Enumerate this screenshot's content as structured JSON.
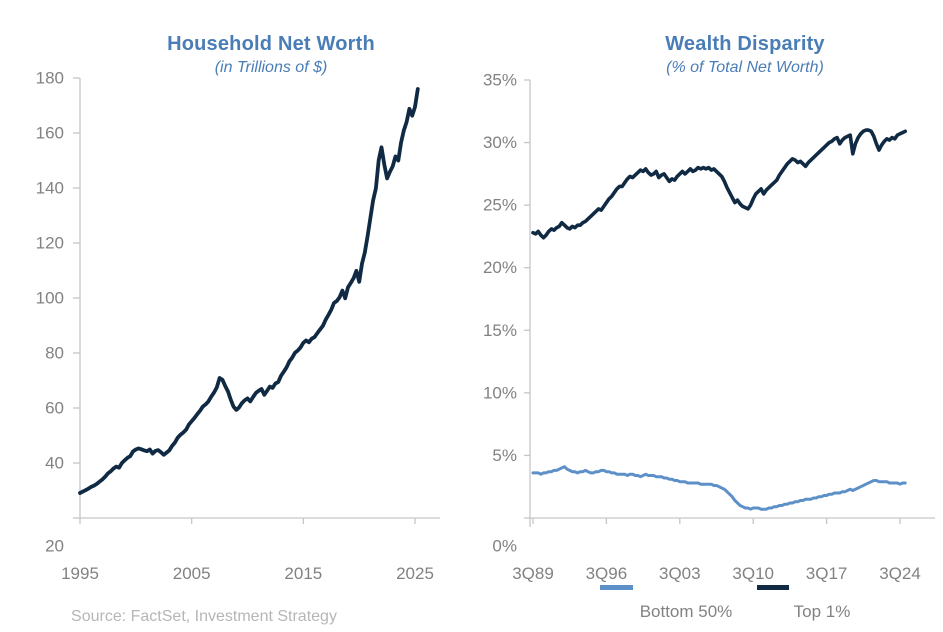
{
  "page": {
    "source_note": "Source: FactSet, Investment Strategy",
    "accent_color": "#4a7db6",
    "axis_text_color": "#828282",
    "axis_line_color": "#c6c6c6",
    "source_text_color": "#b6b6b6"
  },
  "legend": {
    "position": "bottom",
    "items": [
      {
        "label": "Bottom 50%",
        "color": "#5d90c8"
      },
      {
        "label": "Top 1%",
        "color": "#112a44"
      }
    ]
  },
  "chart_data": [
    {
      "type": "line",
      "title": "Household Net Worth",
      "subtitle": "(in Trillions of $)",
      "xlabel": "",
      "ylabel": "",
      "ylim": [
        20,
        180
      ],
      "grid": false,
      "x_start": 1995.0,
      "x_step": 0.25,
      "yticks": [
        {
          "v": 20,
          "label": "20"
        },
        {
          "v": 40,
          "label": "40"
        },
        {
          "v": 60,
          "label": "60"
        },
        {
          "v": 80,
          "label": "80"
        },
        {
          "v": 100,
          "label": "100"
        },
        {
          "v": 120,
          "label": "120"
        },
        {
          "v": 140,
          "label": "140"
        },
        {
          "v": 160,
          "label": "160"
        },
        {
          "v": 180,
          "label": "180"
        }
      ],
      "xticks": [
        {
          "t": 1995,
          "label": "1995"
        },
        {
          "t": 2005,
          "label": "2005"
        },
        {
          "t": 2015,
          "label": "2015"
        },
        {
          "t": 2025,
          "label": "2025"
        }
      ],
      "series": [
        {
          "name": "Household Net Worth",
          "color": "#112a44",
          "values": [
            29.1,
            29.6,
            30.1,
            30.7,
            31.3,
            31.8,
            32.4,
            33.2,
            34.0,
            35.0,
            36.2,
            37.0,
            38.0,
            38.7,
            38.3,
            40.0,
            41.0,
            41.9,
            42.5,
            44.2,
            44.9,
            45.3,
            45.0,
            44.6,
            44.3,
            44.9,
            43.4,
            44.4,
            44.7,
            43.9,
            43.0,
            43.8,
            44.6,
            46.2,
            47.4,
            49.2,
            50.3,
            51.1,
            52.1,
            54.0,
            55.2,
            56.4,
            57.8,
            59.0,
            60.5,
            61.3,
            62.4,
            64.1,
            65.6,
            67.5,
            70.9,
            70.3,
            68.0,
            66.0,
            63.0,
            60.5,
            59.3,
            60.2,
            61.8,
            62.8,
            63.5,
            62.4,
            64.0,
            65.5,
            66.3,
            66.9,
            64.8,
            66.2,
            67.8,
            67.3,
            68.9,
            69.4,
            71.7,
            73.2,
            74.8,
            77.0,
            78.3,
            80.1,
            80.9,
            82.0,
            83.7,
            84.6,
            83.9,
            85.2,
            85.8,
            87.2,
            88.6,
            89.9,
            92.1,
            93.9,
            95.8,
            98.2,
            98.9,
            100.3,
            102.7,
            99.9,
            103.9,
            105.5,
            107.2,
            109.9,
            105.9,
            112.5,
            116.5,
            122.3,
            128.9,
            135.5,
            139.9,
            150.1,
            154.8,
            148.5,
            143.5,
            145.9,
            147.9,
            151.5,
            150.0,
            156.4,
            160.9,
            164.0,
            168.8,
            166.3,
            169.5,
            176.0
          ]
        }
      ]
    },
    {
      "type": "line",
      "title": "Wealth Disparity",
      "subtitle": "(% of Total Net Worth)",
      "xlabel": "",
      "ylabel": "",
      "ylim": [
        0,
        35
      ],
      "grid": false,
      "legend_position": "bottom",
      "x_start": 1989.5,
      "x_step": 0.25,
      "yticks": [
        {
          "v": 0,
          "label": "0%"
        },
        {
          "v": 5,
          "label": "5%"
        },
        {
          "v": 10,
          "label": "10%"
        },
        {
          "v": 15,
          "label": "15%"
        },
        {
          "v": 20,
          "label": "20%"
        },
        {
          "v": 25,
          "label": "25%"
        },
        {
          "v": 30,
          "label": "30%"
        },
        {
          "v": 35,
          "label": "35%"
        }
      ],
      "xticks": [
        {
          "t": 1989.5,
          "label": "3Q89"
        },
        {
          "t": 1996.5,
          "label": "3Q96"
        },
        {
          "t": 2003.5,
          "label": "3Q03"
        },
        {
          "t": 2010.5,
          "label": "3Q10"
        },
        {
          "t": 2017.5,
          "label": "3Q17"
        },
        {
          "t": 2024.5,
          "label": "3Q24"
        }
      ],
      "series": [
        {
          "name": "Bottom 50%",
          "color": "#5d90c8",
          "values": [
            3.6,
            3.6,
            3.6,
            3.5,
            3.6,
            3.6,
            3.7,
            3.7,
            3.8,
            3.8,
            3.9,
            4.0,
            4.1,
            3.9,
            3.8,
            3.7,
            3.7,
            3.6,
            3.7,
            3.7,
            3.8,
            3.7,
            3.6,
            3.6,
            3.7,
            3.7,
            3.8,
            3.8,
            3.7,
            3.7,
            3.6,
            3.6,
            3.5,
            3.5,
            3.5,
            3.5,
            3.4,
            3.5,
            3.5,
            3.4,
            3.4,
            3.3,
            3.4,
            3.5,
            3.4,
            3.4,
            3.4,
            3.3,
            3.3,
            3.3,
            3.2,
            3.2,
            3.1,
            3.1,
            3.0,
            3.0,
            2.9,
            2.9,
            2.9,
            2.8,
            2.8,
            2.8,
            2.8,
            2.8,
            2.7,
            2.7,
            2.7,
            2.7,
            2.7,
            2.6,
            2.6,
            2.5,
            2.4,
            2.3,
            2.1,
            1.9,
            1.7,
            1.4,
            1.2,
            1.0,
            0.9,
            0.8,
            0.8,
            0.7,
            0.8,
            0.8,
            0.8,
            0.7,
            0.7,
            0.7,
            0.8,
            0.8,
            0.9,
            0.9,
            1.0,
            1.0,
            1.1,
            1.1,
            1.2,
            1.2,
            1.3,
            1.3,
            1.4,
            1.4,
            1.5,
            1.5,
            1.5,
            1.6,
            1.6,
            1.7,
            1.7,
            1.8,
            1.8,
            1.9,
            1.9,
            2.0,
            2.0,
            2.0,
            2.1,
            2.1,
            2.2,
            2.3,
            2.2,
            2.3,
            2.4,
            2.5,
            2.6,
            2.7,
            2.8,
            2.9,
            3.0,
            3.0,
            2.9,
            2.9,
            2.9,
            2.9,
            2.8,
            2.8,
            2.8,
            2.8,
            2.7,
            2.8,
            2.8
          ]
        },
        {
          "name": "Top 1%",
          "color": "#112a44",
          "values": [
            22.8,
            22.7,
            22.9,
            22.6,
            22.4,
            22.6,
            22.9,
            23.1,
            23.0,
            23.2,
            23.3,
            23.6,
            23.4,
            23.2,
            23.1,
            23.3,
            23.2,
            23.4,
            23.4,
            23.6,
            23.7,
            23.9,
            24.1,
            24.3,
            24.5,
            24.7,
            24.6,
            24.9,
            25.2,
            25.5,
            25.7,
            26.0,
            26.3,
            26.5,
            26.5,
            26.8,
            27.1,
            27.3,
            27.2,
            27.4,
            27.6,
            27.8,
            27.7,
            27.9,
            27.6,
            27.4,
            27.5,
            27.7,
            27.2,
            27.4,
            27.5,
            27.2,
            26.9,
            27.1,
            27.0,
            27.3,
            27.5,
            27.7,
            27.5,
            27.7,
            27.9,
            27.7,
            27.8,
            28.0,
            27.9,
            28.0,
            27.9,
            28.0,
            27.8,
            27.9,
            27.7,
            27.5,
            27.3,
            26.9,
            26.4,
            26.0,
            25.6,
            25.2,
            25.4,
            25.1,
            24.9,
            24.8,
            24.7,
            25.0,
            25.5,
            25.9,
            26.1,
            26.3,
            25.9,
            26.2,
            26.4,
            26.6,
            26.8,
            27.0,
            27.4,
            27.7,
            28.0,
            28.3,
            28.5,
            28.7,
            28.6,
            28.4,
            28.5,
            28.3,
            28.1,
            28.4,
            28.6,
            28.8,
            29.0,
            29.2,
            29.4,
            29.6,
            29.8,
            30.0,
            30.1,
            30.3,
            30.4,
            29.9,
            30.2,
            30.4,
            30.5,
            30.6,
            29.1,
            29.9,
            30.4,
            30.7,
            30.9,
            31.0,
            31.0,
            30.9,
            30.5,
            29.9,
            29.4,
            29.8,
            30.1,
            30.3,
            30.2,
            30.4,
            30.3,
            30.6,
            30.7,
            30.8,
            30.9
          ]
        }
      ]
    }
  ]
}
